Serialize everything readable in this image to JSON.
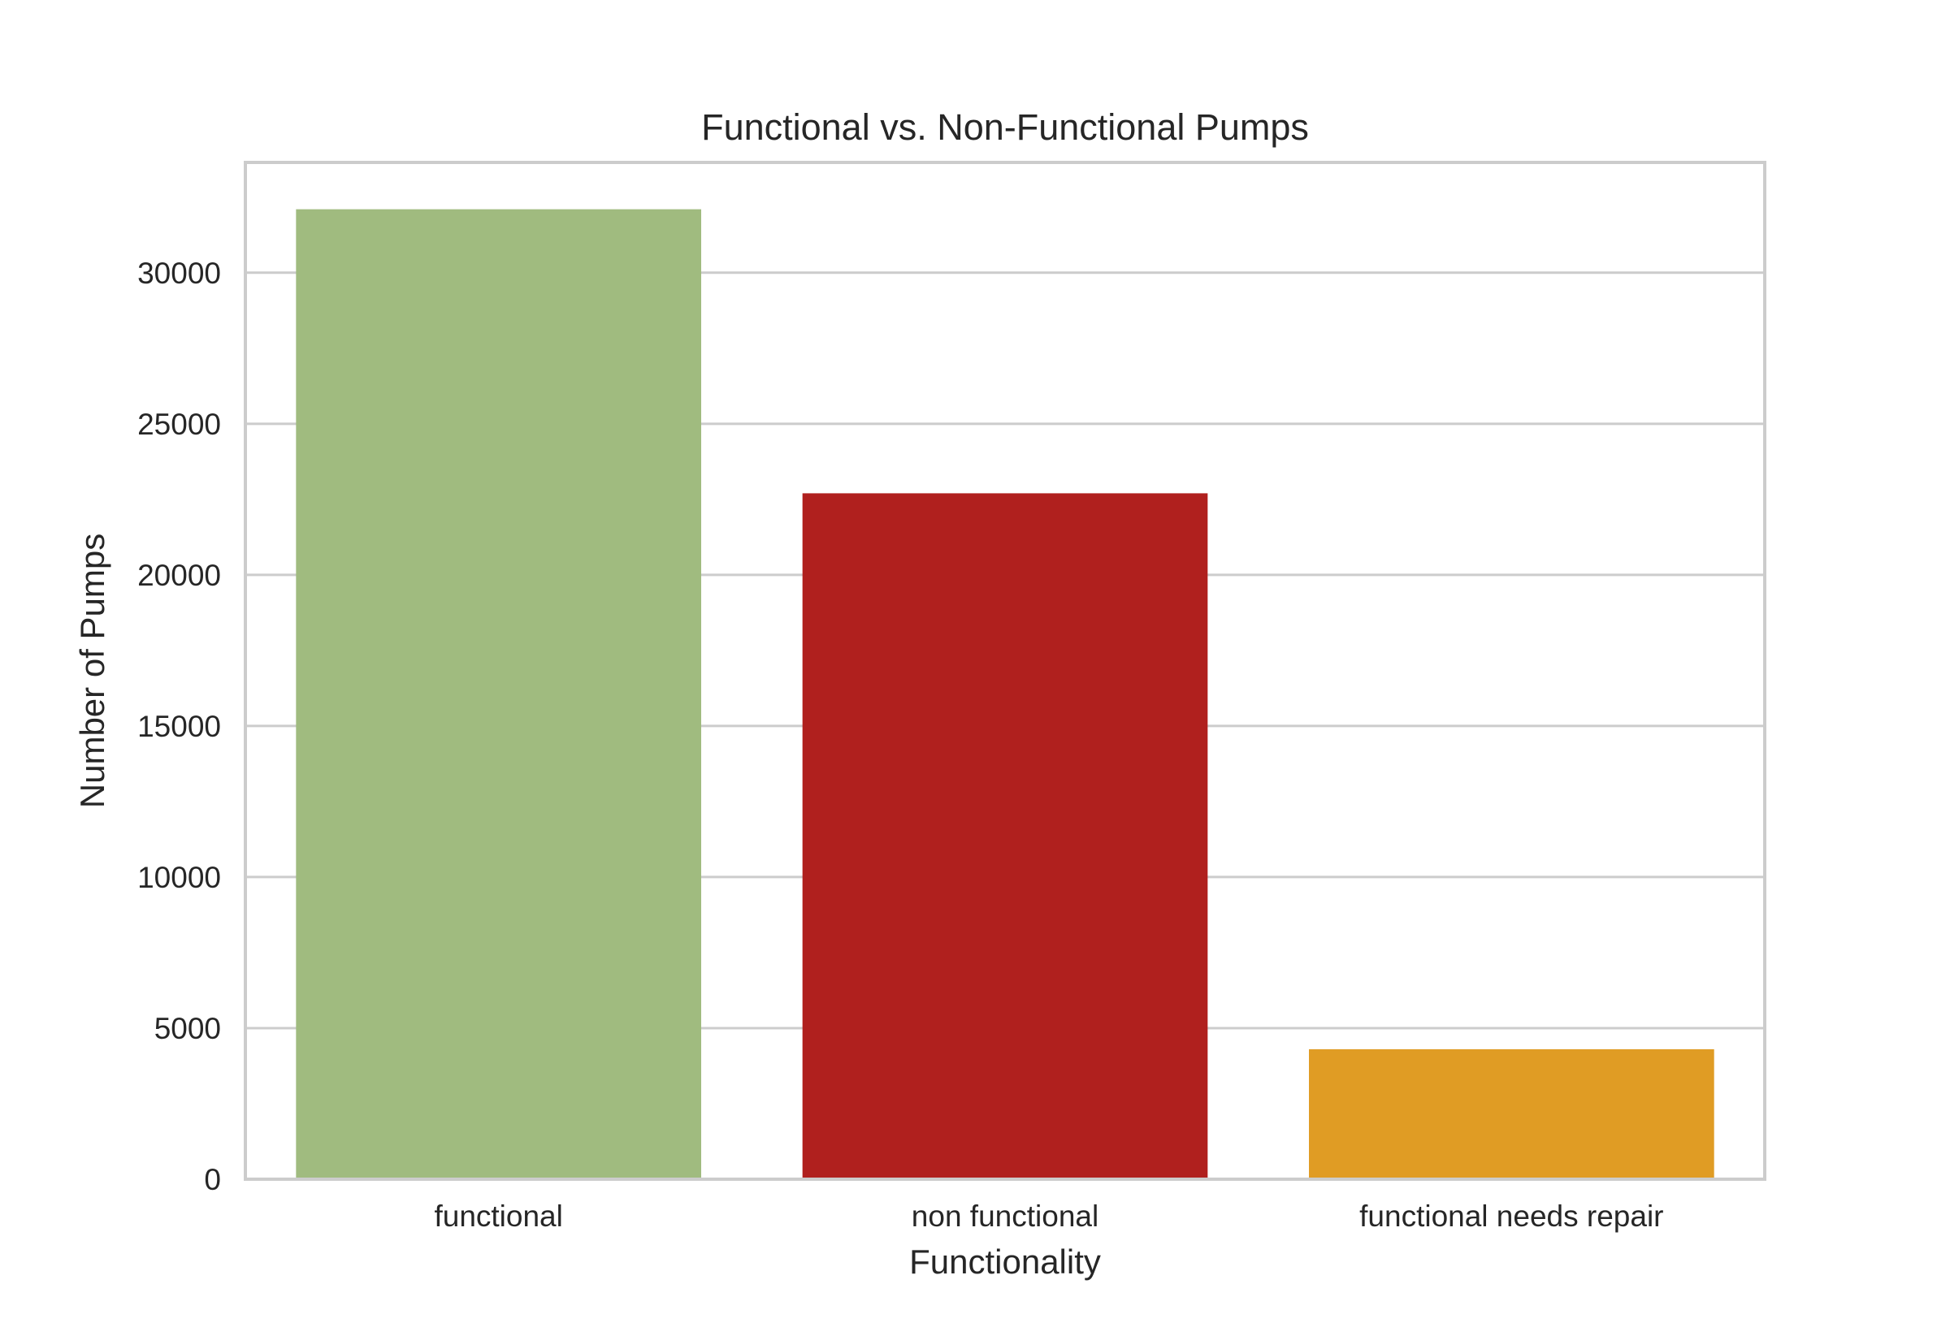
{
  "chart_data": {
    "type": "bar",
    "title": "Functional vs. Non-Functional Pumps",
    "xlabel": "Functionality",
    "ylabel": "Number of Pumps",
    "categories": [
      "functional",
      "non functional",
      "functional needs repair"
    ],
    "values": [
      32100,
      22700,
      4300
    ],
    "colors": [
      "#a0bb7f",
      "#b0201e",
      "#e09c24"
    ],
    "ylim": [
      0,
      33650
    ],
    "yticks": [
      0,
      5000,
      10000,
      15000,
      20000,
      25000,
      30000
    ],
    "ytick_labels": [
      "0",
      "5000",
      "10000",
      "15000",
      "20000",
      "25000",
      "30000"
    ],
    "grid": true,
    "grid_axis": "y",
    "legend": false
  }
}
